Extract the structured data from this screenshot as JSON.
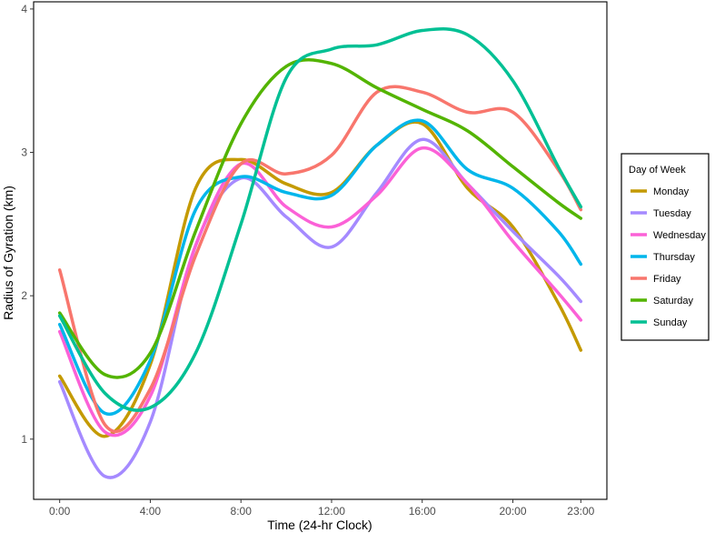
{
  "chart_data": {
    "type": "line",
    "xlabel": "Time (24-hr Clock)",
    "ylabel": "Radius of Gyration (km)",
    "x": [
      0,
      2,
      4,
      6,
      8,
      10,
      12,
      14,
      16,
      18,
      20,
      22,
      23
    ],
    "xticks": [
      0,
      4,
      8,
      12,
      16,
      20,
      23
    ],
    "xtick_labels": [
      "0:00",
      "4:00",
      "8:00",
      "12:00",
      "16:00",
      "20:00",
      "23:00"
    ],
    "yticks": [
      1,
      2,
      3,
      4
    ],
    "ytick_labels": [
      "1",
      "2",
      "3",
      "4"
    ],
    "xlim": [
      -1.15,
      24.15
    ],
    "ylim": [
      0.58,
      4.05
    ],
    "grid": false,
    "legend": {
      "title": "Day of Week",
      "position": "right"
    },
    "series": [
      {
        "name": "Monday",
        "color": "#C49A00",
        "values": [
          1.44,
          1.02,
          1.52,
          2.75,
          2.95,
          2.78,
          2.72,
          3.05,
          3.2,
          2.75,
          2.48,
          1.95,
          1.62
        ]
      },
      {
        "name": "Tuesday",
        "color": "#A58AFF",
        "values": [
          1.4,
          0.74,
          1.12,
          2.35,
          2.82,
          2.55,
          2.34,
          2.72,
          3.09,
          2.78,
          2.45,
          2.14,
          1.96
        ]
      },
      {
        "name": "Wednesday",
        "color": "#FB61D7",
        "values": [
          1.75,
          1.05,
          1.3,
          2.35,
          2.92,
          2.62,
          2.48,
          2.7,
          3.03,
          2.78,
          2.38,
          2.02,
          1.83
        ]
      },
      {
        "name": "Thursday",
        "color": "#00B6EB",
        "values": [
          1.8,
          1.18,
          1.55,
          2.6,
          2.83,
          2.72,
          2.7,
          3.05,
          3.22,
          2.88,
          2.75,
          2.45,
          2.22
        ]
      },
      {
        "name": "Friday",
        "color": "#F8766D",
        "values": [
          2.18,
          1.1,
          1.35,
          2.28,
          2.92,
          2.85,
          2.98,
          3.42,
          3.42,
          3.28,
          3.28,
          2.88,
          2.6
        ]
      },
      {
        "name": "Saturday",
        "color": "#53B400",
        "values": [
          1.88,
          1.45,
          1.6,
          2.45,
          3.2,
          3.6,
          3.62,
          3.45,
          3.3,
          3.15,
          2.9,
          2.65,
          2.54
        ]
      },
      {
        "name": "Sunday",
        "color": "#00C094",
        "values": [
          1.86,
          1.32,
          1.22,
          1.6,
          2.5,
          3.52,
          3.72,
          3.75,
          3.85,
          3.82,
          3.5,
          2.9,
          2.62
        ]
      }
    ]
  }
}
